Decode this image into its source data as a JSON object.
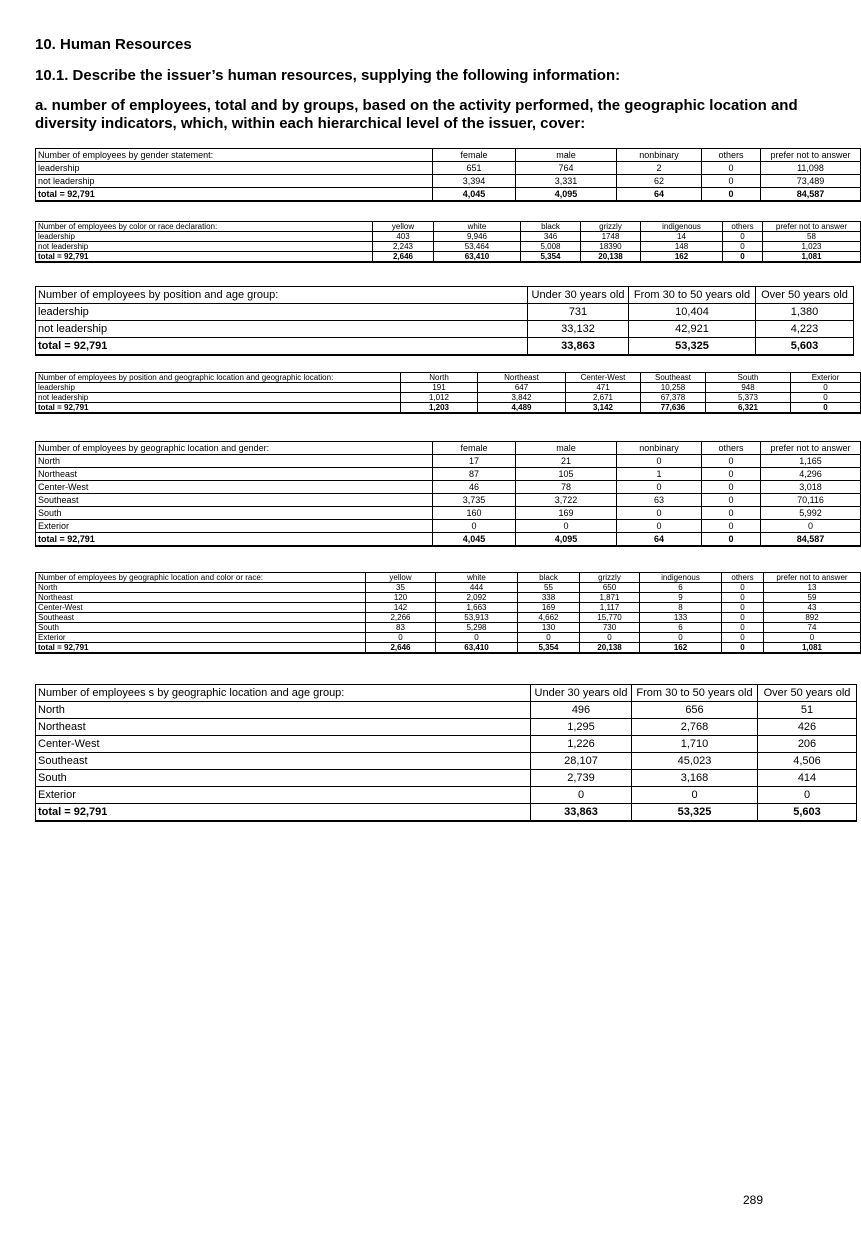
{
  "headings": {
    "h1": "10. Human Resources",
    "h2": "10.1. Describe the issuer’s human resources, supplying the following information:",
    "h3": "a. number of employees, total and by groups, based on the activity performed, the geographic location and diversity indicators, which, within each hierarchical level of the issuer, cover:"
  },
  "tables": [
    {
      "header": [
        "Number of employees by gender statement:",
        "female",
        "male",
        "nonbinary",
        "others",
        "prefer not to answer"
      ],
      "rows": [
        [
          "leadership",
          "651",
          "764",
          "2",
          "0",
          "11,098"
        ],
        [
          "not leadership",
          "3,394",
          "3,331",
          "62",
          "0",
          "73,489"
        ],
        [
          "total = 92,791",
          "4,045",
          "4,095",
          "64",
          "0",
          "84,587"
        ]
      ]
    },
    {
      "header": [
        "Number of employees by color or race declaration:",
        "yellow",
        "white",
        "black",
        "grizzly",
        "indigenous",
        "others",
        "prefer not to answer"
      ],
      "rows": [
        [
          "leadership",
          "403",
          "9,946",
          "346",
          "1748",
          "14",
          "0",
          "58"
        ],
        [
          "not leadership",
          "2,243",
          "53,464",
          "5,008",
          "18390",
          "148",
          "0",
          "1,023"
        ],
        [
          "total = 92,791",
          "2,646",
          "63,410",
          "5,354",
          "20,138",
          "162",
          "0",
          "1,081"
        ]
      ]
    },
    {
      "header": [
        "Number of employees by position and age group:",
        "Under 30 years old",
        "From 30 to 50 years old",
        "Over 50 years old"
      ],
      "rows": [
        [
          "leadership",
          "731",
          "10,404",
          "1,380"
        ],
        [
          "not leadership",
          "33,132",
          "42,921",
          "4,223"
        ],
        [
          "total = 92,791",
          "33,863",
          "53,325",
          "5,603"
        ]
      ]
    },
    {
      "header": [
        "Number of employees by position and geographic location and geographic location:",
        "North",
        "Northeast",
        "Center-West",
        "Southeast",
        "South",
        "Exterior"
      ],
      "rows": [
        [
          "leadership",
          "191",
          "647",
          "471",
          "10,258",
          "948",
          "0"
        ],
        [
          "not leadership",
          "1,012",
          "3,842",
          "2,671",
          "67,378",
          "5,373",
          "0"
        ],
        [
          "total = 92,791",
          "1,203",
          "4,489",
          "3,142",
          "77,636",
          "6,321",
          "0"
        ]
      ]
    },
    {
      "header": [
        "Number of employees by geographic location and gender:",
        "female",
        "male",
        "nonbinary",
        "others",
        "prefer not to answer"
      ],
      "rows": [
        [
          "North",
          "17",
          "21",
          "0",
          "0",
          "1,165"
        ],
        [
          "Northeast",
          "87",
          "105",
          "1",
          "0",
          "4,296"
        ],
        [
          "Center-West",
          "46",
          "78",
          "0",
          "0",
          "3,018"
        ],
        [
          "Southeast",
          "3,735",
          "3,722",
          "63",
          "0",
          "70,116"
        ],
        [
          "South",
          "160",
          "169",
          "0",
          "0",
          "5,992"
        ],
        [
          "Exterior",
          "0",
          "0",
          "0",
          "0",
          "0"
        ],
        [
          "total = 92,791",
          "4,045",
          "4,095",
          "64",
          "0",
          "84,587"
        ]
      ]
    },
    {
      "header": [
        "Number of employees by geographic location and color or race:",
        "yellow",
        "white",
        "black",
        "grizzly",
        "indigenous",
        "others",
        "prefer not to answer"
      ],
      "rows": [
        [
          "North",
          "35",
          "444",
          "55",
          "650",
          "6",
          "0",
          "13"
        ],
        [
          "Northeast",
          "120",
          "2,092",
          "338",
          "1,871",
          "9",
          "0",
          "59"
        ],
        [
          "Center-West",
          "142",
          "1,663",
          "169",
          "1,117",
          "8",
          "0",
          "43"
        ],
        [
          "Southeast",
          "2,266",
          "53,913",
          "4,662",
          "15,770",
          "133",
          "0",
          "892"
        ],
        [
          "South",
          "83",
          "5,298",
          "130",
          "730",
          "6",
          "0",
          "74"
        ],
        [
          "Exterior",
          "0",
          "0",
          "0",
          "0",
          "0",
          "0",
          "0"
        ],
        [
          "total = 92,791",
          "2,646",
          "63,410",
          "5,354",
          "20,138",
          "162",
          "0",
          "1,081"
        ]
      ]
    },
    {
      "header": [
        "Number of employees s by geographic location and age group:",
        "Under 30 years old",
        "From 30 to 50 years old",
        "Over 50 years old"
      ],
      "rows": [
        [
          "North",
          "496",
          "656",
          "51"
        ],
        [
          "Northeast",
          "1,295",
          "2,768",
          "426"
        ],
        [
          "Center-West",
          "1,226",
          "1,710",
          "206"
        ],
        [
          "Southeast",
          "28,107",
          "45,023",
          "4,506"
        ],
        [
          "South",
          "2,739",
          "3,168",
          "414"
        ],
        [
          "Exterior",
          "0",
          "0",
          "0"
        ],
        [
          "total = 92,791",
          "33,863",
          "53,325",
          "5,603"
        ]
      ]
    }
  ],
  "page_number": "289"
}
